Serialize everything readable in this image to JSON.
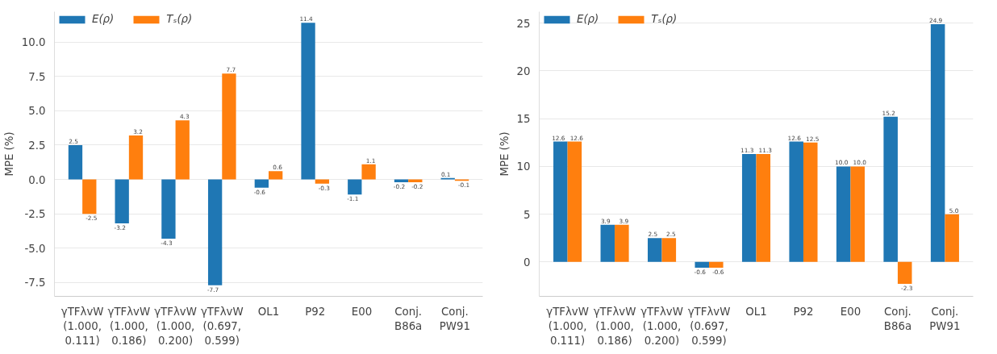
{
  "chart_data": [
    {
      "type": "bar",
      "ylabel": "MPE (%)",
      "categories": [
        "γTFλvW\n(1.000,\n0.111)",
        "γTFλvW\n(1.000,\n0.186)",
        "γTFλvW\n(1.000,\n0.200)",
        "γTFλvW\n(0.697,\n0.599)",
        "OL1",
        "P92",
        "E00",
        "Conj.\nB86a",
        "Conj.\nPW91"
      ],
      "series": [
        {
          "name": "E(ρ)",
          "color": "#1f77b4",
          "values": [
            2.5,
            -3.2,
            -4.3,
            -7.7,
            -0.6,
            11.4,
            -1.1,
            -0.2,
            0.1
          ]
        },
        {
          "name": "Tₛ(ρ)",
          "color": "#ff7f0e",
          "values": [
            -2.5,
            3.2,
            4.3,
            7.7,
            0.6,
            -0.3,
            1.1,
            -0.2,
            -0.1
          ]
        }
      ],
      "ylim": [
        -8.5,
        12.2
      ],
      "yticks": [
        {
          "value": -7.5,
          "label": "-7.5"
        },
        {
          "value": -5,
          "label": "-5.0"
        },
        {
          "value": -2.5,
          "label": "-2.5"
        },
        {
          "value": 0,
          "label": "0.0"
        },
        2.5,
        {
          "value": 5,
          "label": "5.0"
        },
        7.5,
        {
          "value": 10,
          "label": "10.0"
        }
      ],
      "grid": "y",
      "legend": "top left",
      "data_labels": true
    },
    {
      "type": "bar",
      "ylabel": "MPE (%)",
      "categories": [
        "γTFλvW\n(1.000,\n0.111)",
        "γTFλvW\n(1.000,\n0.186)",
        "γTFλvW\n(1.000,\n0.200)",
        "γTFλvW\n(0.697,\n0.599)",
        "OL1",
        "P92",
        "E00",
        "Conj.\nB86a",
        "Conj.\nPW91"
      ],
      "series": [
        {
          "name": "E(ρ)",
          "color": "#1f77b4",
          "values": [
            12.6,
            3.9,
            2.5,
            -0.6,
            11.3,
            12.6,
            10.0,
            15.2,
            24.9
          ],
          "value_labels": [
            "12.6",
            "3.9",
            "2.5",
            "-0.6",
            "11.3",
            "12.6",
            "10.0",
            "15.2",
            "24.9"
          ]
        },
        {
          "name": "Tₛ(ρ)",
          "color": "#ff7f0e",
          "values": [
            12.6,
            3.9,
            2.5,
            -0.6,
            11.3,
            12.5,
            10.0,
            -2.3,
            5.0
          ],
          "value_labels": [
            "12.6",
            "3.9",
            "2.5",
            "-0.6",
            "11.3",
            "12.5",
            "10.0",
            "-2.3",
            "5.0"
          ]
        }
      ],
      "ylim": [
        -3.6,
        26.2
      ],
      "yticks": [
        0,
        5,
        10,
        15,
        20,
        25
      ],
      "grid": "y",
      "legend": "top left"
    }
  ]
}
